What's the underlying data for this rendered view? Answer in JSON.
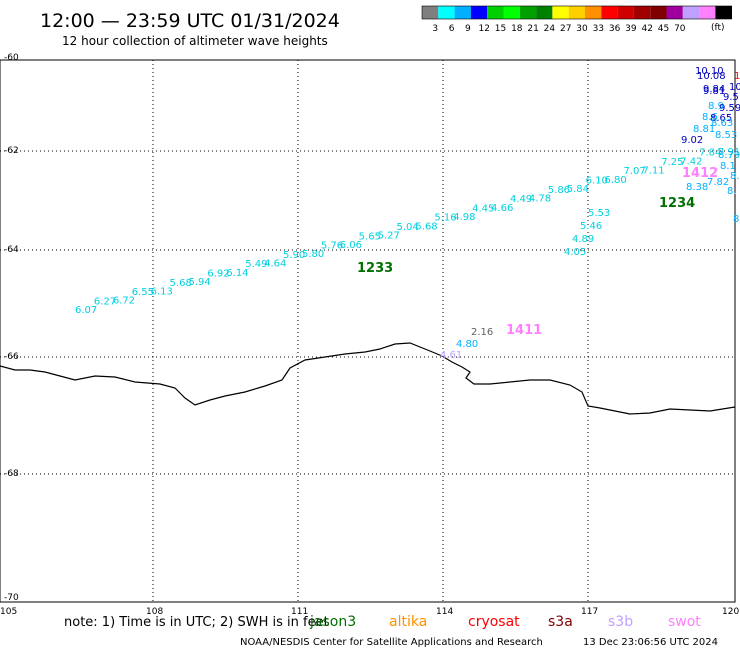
{
  "header": {
    "title": "12:00 — 23:59 UTC 01/31/2024",
    "subtitle": "12 hour collection of altimeter wave heights"
  },
  "legend": {
    "colors": [
      "#7f7f7f",
      "#00ffff",
      "#00b0ff",
      "#0000ff",
      "#00d000",
      "#00ff00",
      "#00a000",
      "#008000",
      "#ffff00",
      "#ffd000",
      "#ff9000",
      "#ff0000",
      "#d00000",
      "#a00000",
      "#800000",
      "#a000a0",
      "#c0a0ff",
      "#ff80ff",
      "#000000"
    ],
    "labels": [
      "3",
      "6",
      "9",
      "12",
      "15",
      "18",
      "21",
      "24",
      "27",
      "30",
      "33",
      "36",
      "39",
      "42",
      "45",
      "70"
    ],
    "unit": "(ft)"
  },
  "axes": {
    "lat_labels": [
      "-60",
      "-62",
      "-64",
      "-66",
      "-68",
      "-70"
    ],
    "lon_labels": [
      "105",
      "108",
      "111",
      "114",
      "117",
      "120"
    ]
  },
  "tracks": [
    {
      "color": "#00d0e0",
      "labels": [
        "6.07",
        "6.27",
        "6.72",
        "6.55",
        "6.13",
        "5.68",
        "5.94",
        "6.92",
        "6.14",
        "5.49",
        "4.64",
        "5.90",
        "5.80",
        "5.76",
        "6.06",
        "5.65",
        "5.27",
        "5.04",
        "5.68",
        "5.16",
        "4.98",
        "4.45",
        "4.66",
        "4.49",
        "4.78",
        "5.86",
        "5.84",
        "6.10",
        "6.80",
        "7.07",
        "7.11",
        "7.25",
        "7.42",
        "7.84",
        "7.91"
      ]
    },
    {
      "color": "#00d0e0",
      "labels": [
        "4.05",
        "4.89",
        "5.46",
        "5.53"
      ]
    }
  ],
  "upper_right_values": [
    {
      "text": "10.10",
      "color": "#0000c0"
    },
    {
      "text": "10.08",
      "color": "#0000c0"
    },
    {
      "text": "1",
      "color": "#ff0000"
    },
    {
      "text": "9.84",
      "color": "#0000c0"
    },
    {
      "text": "9.81",
      "color": "#0000c0"
    },
    {
      "text": "10",
      "color": "#0000c0"
    },
    {
      "text": "9.5",
      "color": "#0000c0"
    },
    {
      "text": "8.9",
      "color": "#00b0ff"
    },
    {
      "text": "9.59",
      "color": "#0000c0"
    },
    {
      "text": "8.6",
      "color": "#00b0ff"
    },
    {
      "text": "8.65",
      "color": "#0000c0"
    },
    {
      "text": "8.63",
      "color": "#00b0ff"
    },
    {
      "text": "8.81",
      "color": "#00b0ff"
    },
    {
      "text": "8.53",
      "color": "#00b0ff"
    },
    {
      "text": "9.02",
      "color": "#0000c0"
    },
    {
      "text": "8.79",
      "color": "#00b0ff"
    },
    {
      "text": "8.1",
      "color": "#00b0ff"
    },
    {
      "text": "8.38",
      "color": "#00b0ff"
    },
    {
      "text": "7.82",
      "color": "#00b0ff"
    },
    {
      "text": "8.",
      "color": "#00b0ff"
    },
    {
      "text": "8.",
      "color": "#00b0ff"
    },
    {
      "text": "8",
      "color": "#00b0ff"
    }
  ],
  "lower_track": [
    {
      "text": "2.16",
      "color": "#606060"
    },
    {
      "text": "4.80",
      "color": "#00b0ff"
    },
    {
      "text": "4.61",
      "color": "#c0a0ff"
    }
  ],
  "pass_times": [
    {
      "text": "1233",
      "color": "#007000"
    },
    {
      "text": "1234",
      "color": "#007000"
    },
    {
      "text": "1412",
      "color": "#ff80ff"
    },
    {
      "text": "1411",
      "color": "#ff80ff"
    }
  ],
  "note": "note: 1) Time is in UTC; 2) SWH is in feet",
  "satellites": [
    {
      "name": "jason3",
      "color": "#007000"
    },
    {
      "name": "altika",
      "color": "#ff9000"
    },
    {
      "name": "cryosat",
      "color": "#ff0000"
    },
    {
      "name": "s3a",
      "color": "#800000"
    },
    {
      "name": "s3b",
      "color": "#c0a0ff"
    },
    {
      "name": "swot",
      "color": "#ff80ff"
    }
  ],
  "footer": {
    "credit": "NOAA/NESDIS Center for Satellite Applications and Research",
    "timestamp": "13 Dec 23:06:56 UTC 2024"
  }
}
